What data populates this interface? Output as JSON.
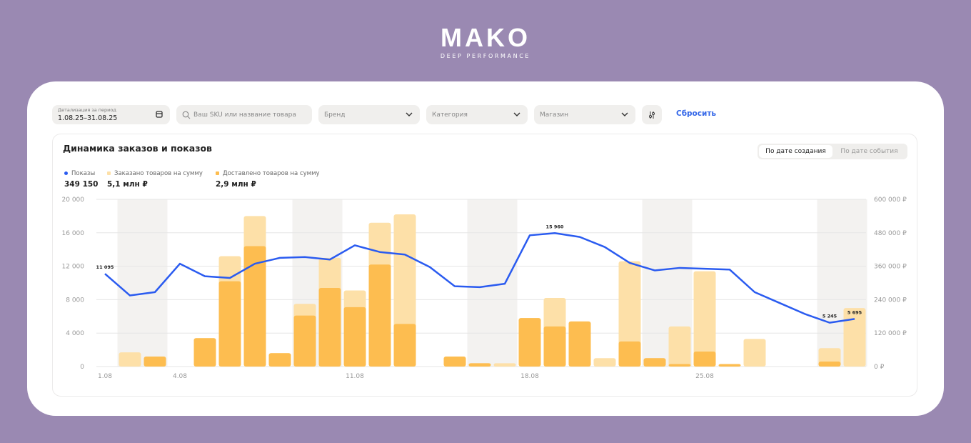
{
  "logo": {
    "name": "MAKO",
    "tagline": "DEEP PERFORMANCE"
  },
  "filters": {
    "period_label": "Детализация за период",
    "period_value": "1.08.25–31.08.25",
    "search_placeholder": "Ваш SKU или название товара",
    "brand": "Бренд",
    "category": "Категория",
    "shop": "Магазин",
    "reset": "Сбросить"
  },
  "panel": {
    "title": "Динамика заказов и показов",
    "toggle": [
      "По дате создания",
      "По дате события"
    ],
    "active_toggle": 0
  },
  "legend": [
    {
      "label": "Показы",
      "value": "349 150",
      "color": "#2a5bf0"
    },
    {
      "label": "Заказано товаров на сумму",
      "value": "5,1 млн ₽",
      "color": "#fde0a8"
    },
    {
      "label": "Доставлено товаров на сумму",
      "value": "2,9 млн ₽",
      "color": "#fdbd50"
    }
  ],
  "chart_data": {
    "type": "bar+line",
    "title": "Динамика заказов и показов",
    "x": [
      1,
      2,
      3,
      4,
      5,
      6,
      7,
      8,
      9,
      10,
      11,
      12,
      13,
      14,
      15,
      16,
      17,
      18,
      19,
      20,
      21,
      22,
      23,
      24,
      25,
      26,
      27,
      28,
      29,
      30,
      31
    ],
    "x_tick_labels": [
      {
        "day": 1,
        "label": "1.08"
      },
      {
        "day": 4,
        "label": "4.08"
      },
      {
        "day": 11,
        "label": "11.08"
      },
      {
        "day": 18,
        "label": "18.08"
      },
      {
        "day": 25,
        "label": "25.08"
      }
    ],
    "weekend_days": [
      2,
      3,
      9,
      10,
      16,
      17,
      23,
      24,
      30,
      31
    ],
    "y_left": {
      "range": [
        0,
        20000
      ],
      "ticks": [
        "0",
        "4 000",
        "8 000",
        "12 000",
        "16 000",
        "20 000"
      ]
    },
    "y_right": {
      "range": [
        0,
        600000
      ],
      "ticks": [
        "0 ₽",
        "120 000 ₽",
        "240 000 ₽",
        "360 000 ₽",
        "480 000 ₽",
        "600 000 ₽"
      ]
    },
    "series": [
      {
        "name": "Заказано товаров на сумму",
        "axis": "right",
        "type": "bar",
        "values": [
          0,
          51000,
          36000,
          0,
          102000,
          396000,
          540000,
          48000,
          225000,
          390000,
          273000,
          516000,
          546000,
          0,
          36000,
          12000,
          12000,
          174000,
          246000,
          162000,
          30000,
          378000,
          30000,
          144000,
          342000,
          9000,
          99000,
          0,
          0,
          66000,
          210000
        ]
      },
      {
        "name": "Доставлено товаров на сумму",
        "axis": "right",
        "type": "bar",
        "values": [
          0,
          0,
          36000,
          0,
          102000,
          306000,
          432000,
          48000,
          183000,
          282000,
          213000,
          366000,
          153000,
          0,
          36000,
          12000,
          0,
          174000,
          144000,
          162000,
          0,
          90000,
          30000,
          9000,
          54000,
          9000,
          0,
          0,
          0,
          18000,
          0
        ]
      },
      {
        "name": "Показы",
        "axis": "left",
        "type": "line",
        "values": [
          11095,
          8500,
          8900,
          12300,
          10800,
          10600,
          12300,
          13000,
          13100,
          12800,
          14500,
          13700,
          13400,
          11900,
          9600,
          9500,
          9900,
          15700,
          15960,
          15500,
          14300,
          12400,
          11500,
          11800,
          11700,
          11600,
          8900,
          7600,
          6300,
          5245,
          5695
        ]
      }
    ],
    "point_labels": [
      {
        "day": 1,
        "label": "11 095"
      },
      {
        "day": 19,
        "label": "15 960"
      },
      {
        "day": 30,
        "label": "5 245"
      },
      {
        "day": 31,
        "label": "5 695"
      }
    ]
  }
}
